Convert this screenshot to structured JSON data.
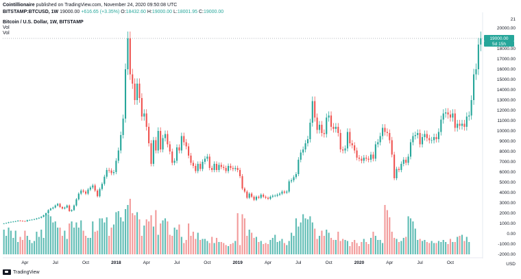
{
  "header": {
    "publisher": "Cointillionaire",
    "published_line": "published on TradingView.com, November 24, 2020 09:50:08 UTC",
    "symbol": "BITSTAMP:BTCUSD, 1W",
    "last": "19000.00",
    "change": "+616.65 (+3.35%)",
    "o_label": "O:",
    "o_val": "18432.60",
    "h_label": "H:",
    "h_val": "19000.00",
    "l_label": "L:",
    "l_val": "18001.95",
    "c_label": "C:",
    "c_val": "19000.00"
  },
  "legend": {
    "title": "Bitcoin / U.S. Dollar, 1W, BITSTAMP",
    "vol1": "Vol",
    "vol2": "Vol"
  },
  "footer": {
    "brand": "TradingView"
  },
  "price_badge": {
    "price": "19000.00",
    "timer": "5d 15h"
  },
  "currency_label": "USD",
  "colors": {
    "up": "#26a69a",
    "down": "#ef5350",
    "vol_up": "#5fbcb4",
    "vol_down": "#f29a9a",
    "grid_dots": "#9aa0a6"
  },
  "chart_data": {
    "type": "candlestick",
    "title": "Bitcoin / U.S. Dollar, 1W, BITSTAMP",
    "y_axis_ticks": [
      "20000.00",
      "19000.00",
      "18000.00",
      "17000.00",
      "16000.00",
      "15000.00",
      "14000.00",
      "13000.00",
      "12000.00",
      "11000.00",
      "10000.00",
      "9000.00",
      "8000.00",
      "7000.00",
      "6000.00",
      "5000.00",
      "4000.00",
      "3000.00",
      "2000.00",
      "1000.00",
      "0.00",
      "-1000.00",
      "-2000.00"
    ],
    "y_axis_extra": "21",
    "ylim": [
      -2000,
      21000
    ],
    "x_axis_ticks": [
      {
        "label": "Apr",
        "year": false
      },
      {
        "label": "Jul",
        "year": false
      },
      {
        "label": "Oct",
        "year": false
      },
      {
        "label": "2018",
        "year": true
      },
      {
        "label": "Apr",
        "year": false
      },
      {
        "label": "Jul",
        "year": false
      },
      {
        "label": "Oct",
        "year": false
      },
      {
        "label": "2019",
        "year": true
      },
      {
        "label": "Apr",
        "year": false
      },
      {
        "label": "Jul",
        "year": false
      },
      {
        "label": "Oct",
        "year": false
      },
      {
        "label": "2020",
        "year": true
      },
      {
        "label": "Apr",
        "year": false
      },
      {
        "label": "Jul",
        "year": false
      },
      {
        "label": "Oct",
        "year": false
      }
    ],
    "x_tick_week_index": [
      9,
      22,
      35,
      48,
      61,
      74,
      87,
      100,
      113,
      126,
      139,
      152,
      165,
      178,
      191
    ],
    "closes": [
      1000,
      1050,
      1120,
      1150,
      1180,
      1220,
      1280,
      1260,
      1230,
      1210,
      1320,
      1340,
      1370,
      1420,
      1490,
      1550,
      1650,
      1800,
      2000,
      2300,
      2450,
      2550,
      2750,
      2900,
      2600,
      2450,
      2550,
      2750,
      2200,
      2300,
      2750,
      3350,
      3900,
      4200,
      4100,
      3900,
      4300,
      4500,
      4700,
      4200,
      3650,
      4350,
      4850,
      5550,
      6200,
      6150,
      5900,
      6000,
      7100,
      8100,
      9600,
      11200,
      16000,
      19000,
      15500,
      14600,
      13000,
      14600,
      13200,
      11400,
      11700,
      10400,
      8800,
      6800,
      9100,
      8100,
      10000,
      8200,
      9300,
      9700,
      8700,
      8000,
      6900,
      7100,
      8400,
      8100,
      9500,
      8900,
      8500,
      7600,
      6900,
      6600,
      6100,
      6800,
      6300,
      7000,
      7300,
      7500,
      6400,
      6200,
      6800,
      6200,
      6700,
      6500,
      6400,
      6100,
      6600,
      6400,
      6300,
      6400,
      6200,
      5600,
      4400,
      4100,
      3500,
      3900,
      3600,
      3300,
      3600,
      3500,
      3800,
      3600,
      3500,
      3400,
      3600,
      3700,
      3700,
      3800,
      3900,
      4100,
      4000,
      4100,
      5100,
      5200,
      5500,
      5800,
      7200,
      7900,
      8200,
      8800,
      9200,
      10800,
      12900,
      11300,
      10100,
      10600,
      9800,
      9700,
      11300,
      11500,
      10400,
      10200,
      10400,
      9800,
      8200,
      8100,
      8300,
      9900,
      8800,
      8600,
      8100,
      7400,
      7300,
      7100,
      7400,
      7300,
      7200,
      7700,
      7300,
      8700,
      8900,
      9500,
      10300,
      9900,
      9800,
      9100,
      7700,
      5400,
      6300,
      6200,
      6800,
      7200,
      6900,
      7500,
      8900,
      9500,
      9600,
      9800,
      8700,
      9400,
      9700,
      9300,
      9100,
      9100,
      9400,
      9200,
      9900,
      11100,
      11700,
      11800,
      11600,
      11300,
      11700,
      10300,
      10700,
      10500,
      10700,
      10400,
      11400,
      11500,
      13000,
      15500,
      16000,
      18400,
      19000
    ],
    "volumes": [
      400,
      -200,
      600,
      300,
      -400,
      300,
      -800,
      -300,
      -600,
      300,
      -200,
      -600,
      -900,
      -700,
      200,
      -300,
      400,
      -400,
      1800,
      1900,
      1700,
      1100,
      1200,
      600,
      600,
      -200,
      300,
      -500,
      1000,
      1200,
      600,
      1100,
      600,
      1300,
      300,
      -200,
      -400,
      -400,
      1200,
      200,
      300,
      1500,
      1500,
      1100,
      1600,
      -200,
      600,
      900,
      2100,
      2200,
      1600,
      1200,
      2400,
      2800,
      3400,
      2000,
      1800,
      2100,
      1400,
      -200,
      800,
      1400,
      1200,
      1800,
      700,
      2300,
      -100,
      1000,
      1300,
      1500,
      1200,
      -100,
      -200,
      600,
      400,
      900,
      -300,
      -900,
      -600,
      1000,
      -200,
      200,
      -500,
      100,
      -600,
      -500,
      -500,
      -700,
      -900,
      -300,
      -900,
      -400,
      -800,
      -800,
      -900,
      -1100,
      -1200,
      -1000,
      -900,
      -700,
      2000,
      -1100,
      1900,
      1500,
      -200,
      400,
      100,
      -400,
      -300,
      -800,
      -700,
      -1000,
      -900,
      -1000,
      -600,
      -400,
      -100,
      -800,
      -700,
      -500,
      -900,
      -1100,
      -700,
      100,
      -200,
      1500,
      700,
      1100,
      1900,
      1500,
      1400,
      1700,
      1100,
      500,
      -500,
      -200,
      300,
      -200,
      400,
      100,
      -400,
      -600,
      -600,
      200,
      -700,
      -500,
      -600,
      -700,
      -1200,
      -800,
      -600,
      -900,
      -1200,
      -800,
      -500,
      -800,
      -1000,
      -400,
      200,
      -200,
      -600,
      -600,
      -900,
      2800,
      2300,
      1600,
      200,
      -400,
      -500,
      -800,
      -700,
      -400,
      -300,
      1700,
      1500,
      1200,
      500,
      -600,
      -500,
      -700,
      -600,
      -800,
      -900,
      -700,
      -900,
      -900,
      -700,
      -800,
      -600,
      -800,
      -1000,
      -500,
      -800,
      -800,
      -300,
      -200,
      -100,
      -700,
      -300,
      -800
    ]
  }
}
